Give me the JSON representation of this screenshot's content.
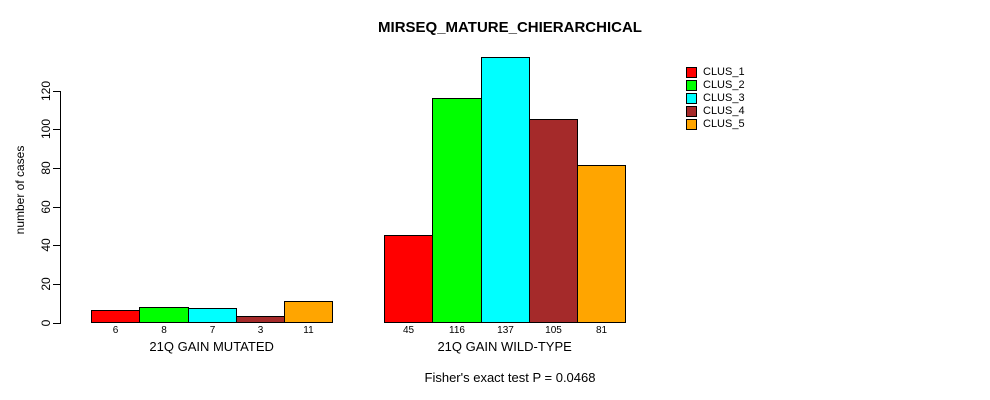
{
  "page": {
    "background_color": "#FFFFFF"
  },
  "chart_data": {
    "type": "bar",
    "title": "MIRSEQ_MATURE_CHIERARCHICAL",
    "ylabel": "number of cases",
    "xlabel": "",
    "ylim": [
      0,
      120
    ],
    "yticks": [
      0,
      20,
      40,
      60,
      80,
      100,
      120
    ],
    "grid": false,
    "bar_value_labels_shown": true,
    "legend_position": "right",
    "categories": [
      "21Q GAIN MUTATED",
      "21Q GAIN WILD-TYPE"
    ],
    "series": [
      {
        "name": "CLUS_1",
        "color": "#FF0000",
        "values": [
          6,
          45
        ]
      },
      {
        "name": "CLUS_2",
        "color": "#00FF00",
        "values": [
          8,
          116
        ]
      },
      {
        "name": "CLUS_3",
        "color": "#00FFFF",
        "values": [
          7,
          137
        ]
      },
      {
        "name": "CLUS_4",
        "color": "#A52A2A",
        "values": [
          3,
          105
        ]
      },
      {
        "name": "CLUS_5",
        "color": "#FFA500",
        "values": [
          11,
          81
        ]
      }
    ],
    "annotation": "Fisher's exact test P = 0.0468"
  }
}
